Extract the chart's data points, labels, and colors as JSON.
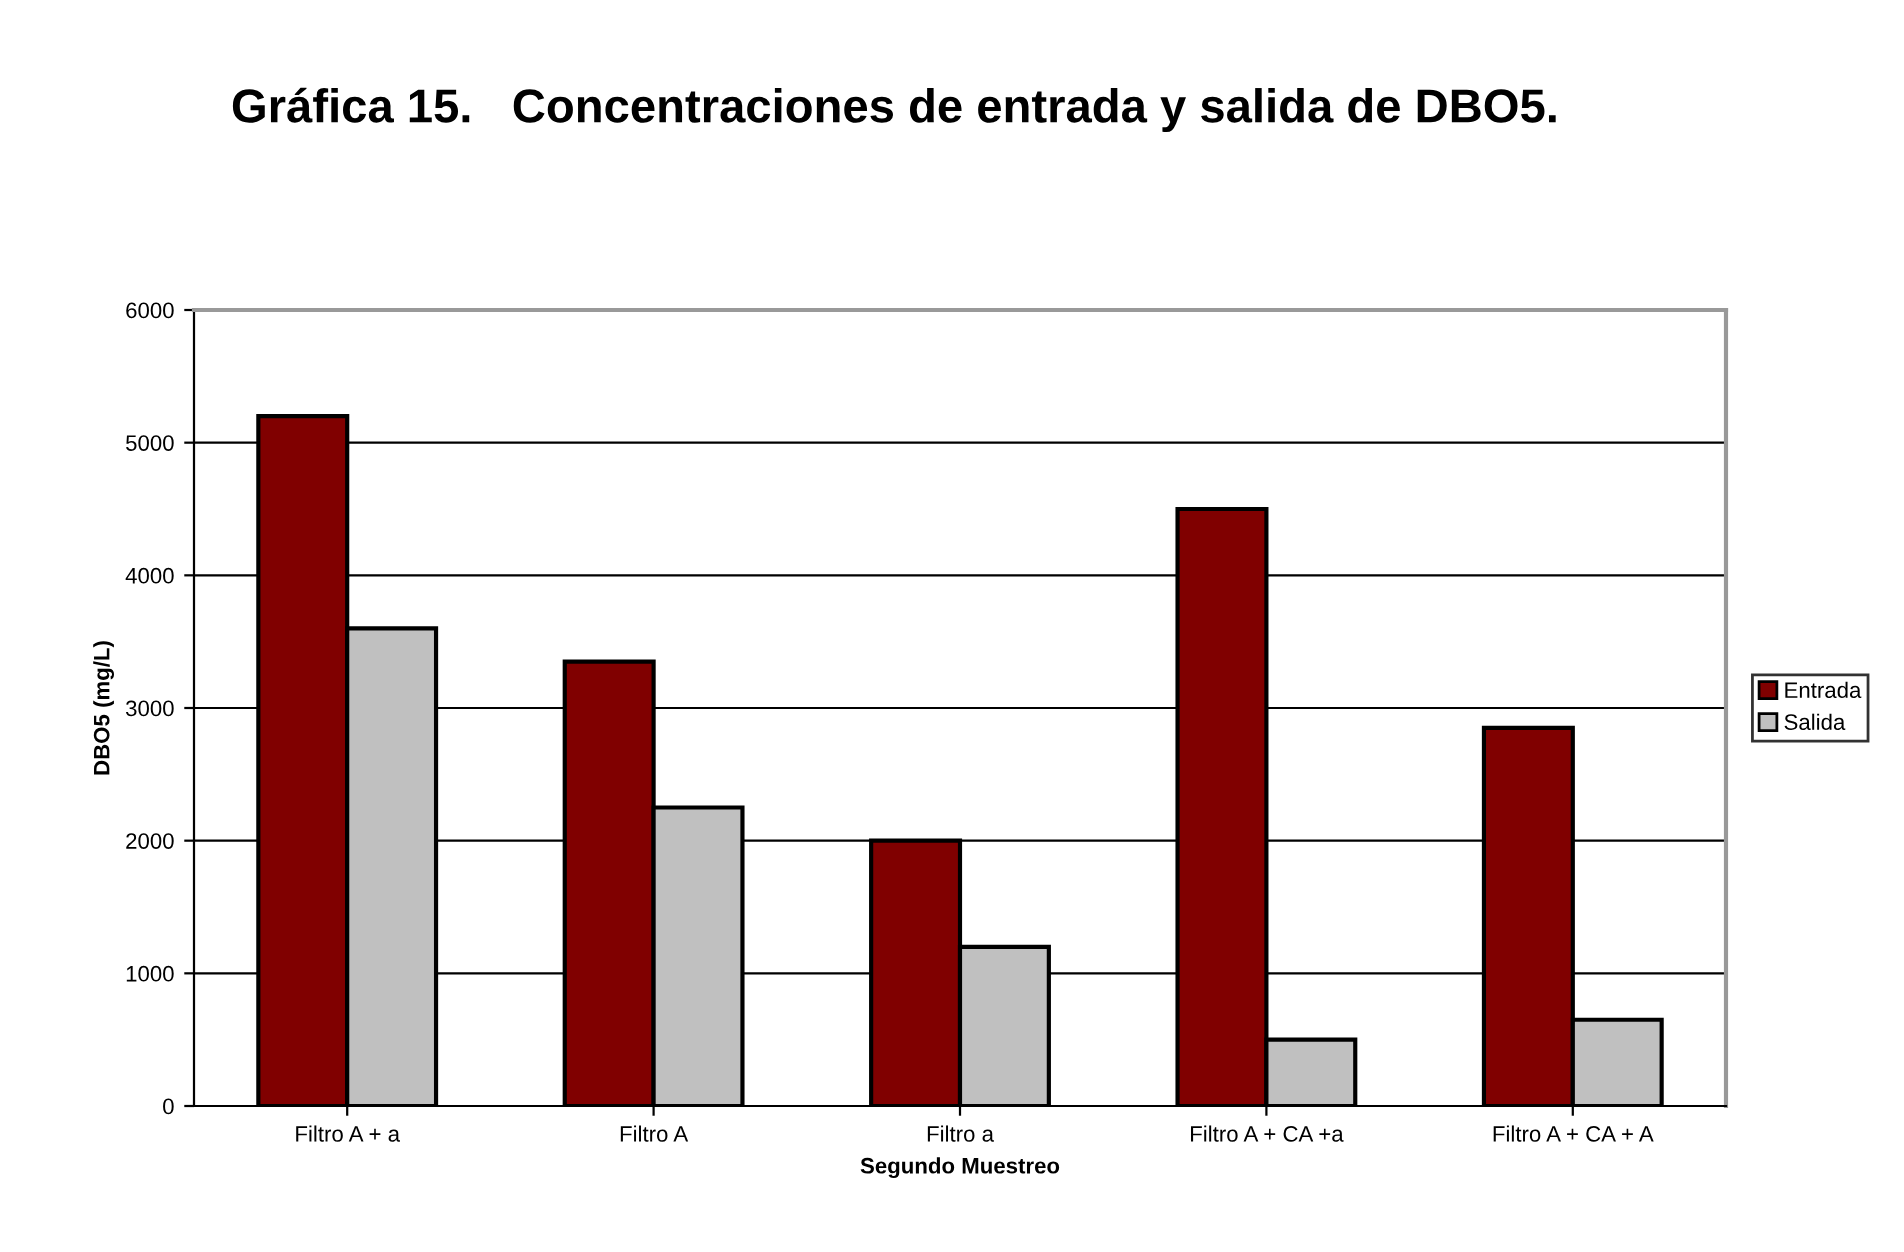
{
  "chart_data": {
    "type": "bar",
    "title": "Gráfica 15.   Concentraciones de entrada y salida de DBO5.",
    "xlabel": "Segundo Muestreo",
    "ylabel": "DBO5 (mg/L)",
    "categories": [
      "Filtro A + a",
      "Filtro A",
      "Filtro a",
      "Filtro A + CA +a",
      "Filtro A + CA + A"
    ],
    "series": [
      {
        "name": "Entrada",
        "color": "#800000",
        "values": [
          5200,
          3350,
          2000,
          4500,
          2850
        ]
      },
      {
        "name": "Salida",
        "color": "#c0c0c0",
        "values": [
          3600,
          2250,
          1200,
          500,
          650
        ]
      }
    ],
    "ylim": [
      0,
      6000
    ],
    "yticks": [
      0,
      1000,
      2000,
      3000,
      4000,
      5000,
      6000
    ],
    "grid": "y",
    "legend": "right"
  }
}
